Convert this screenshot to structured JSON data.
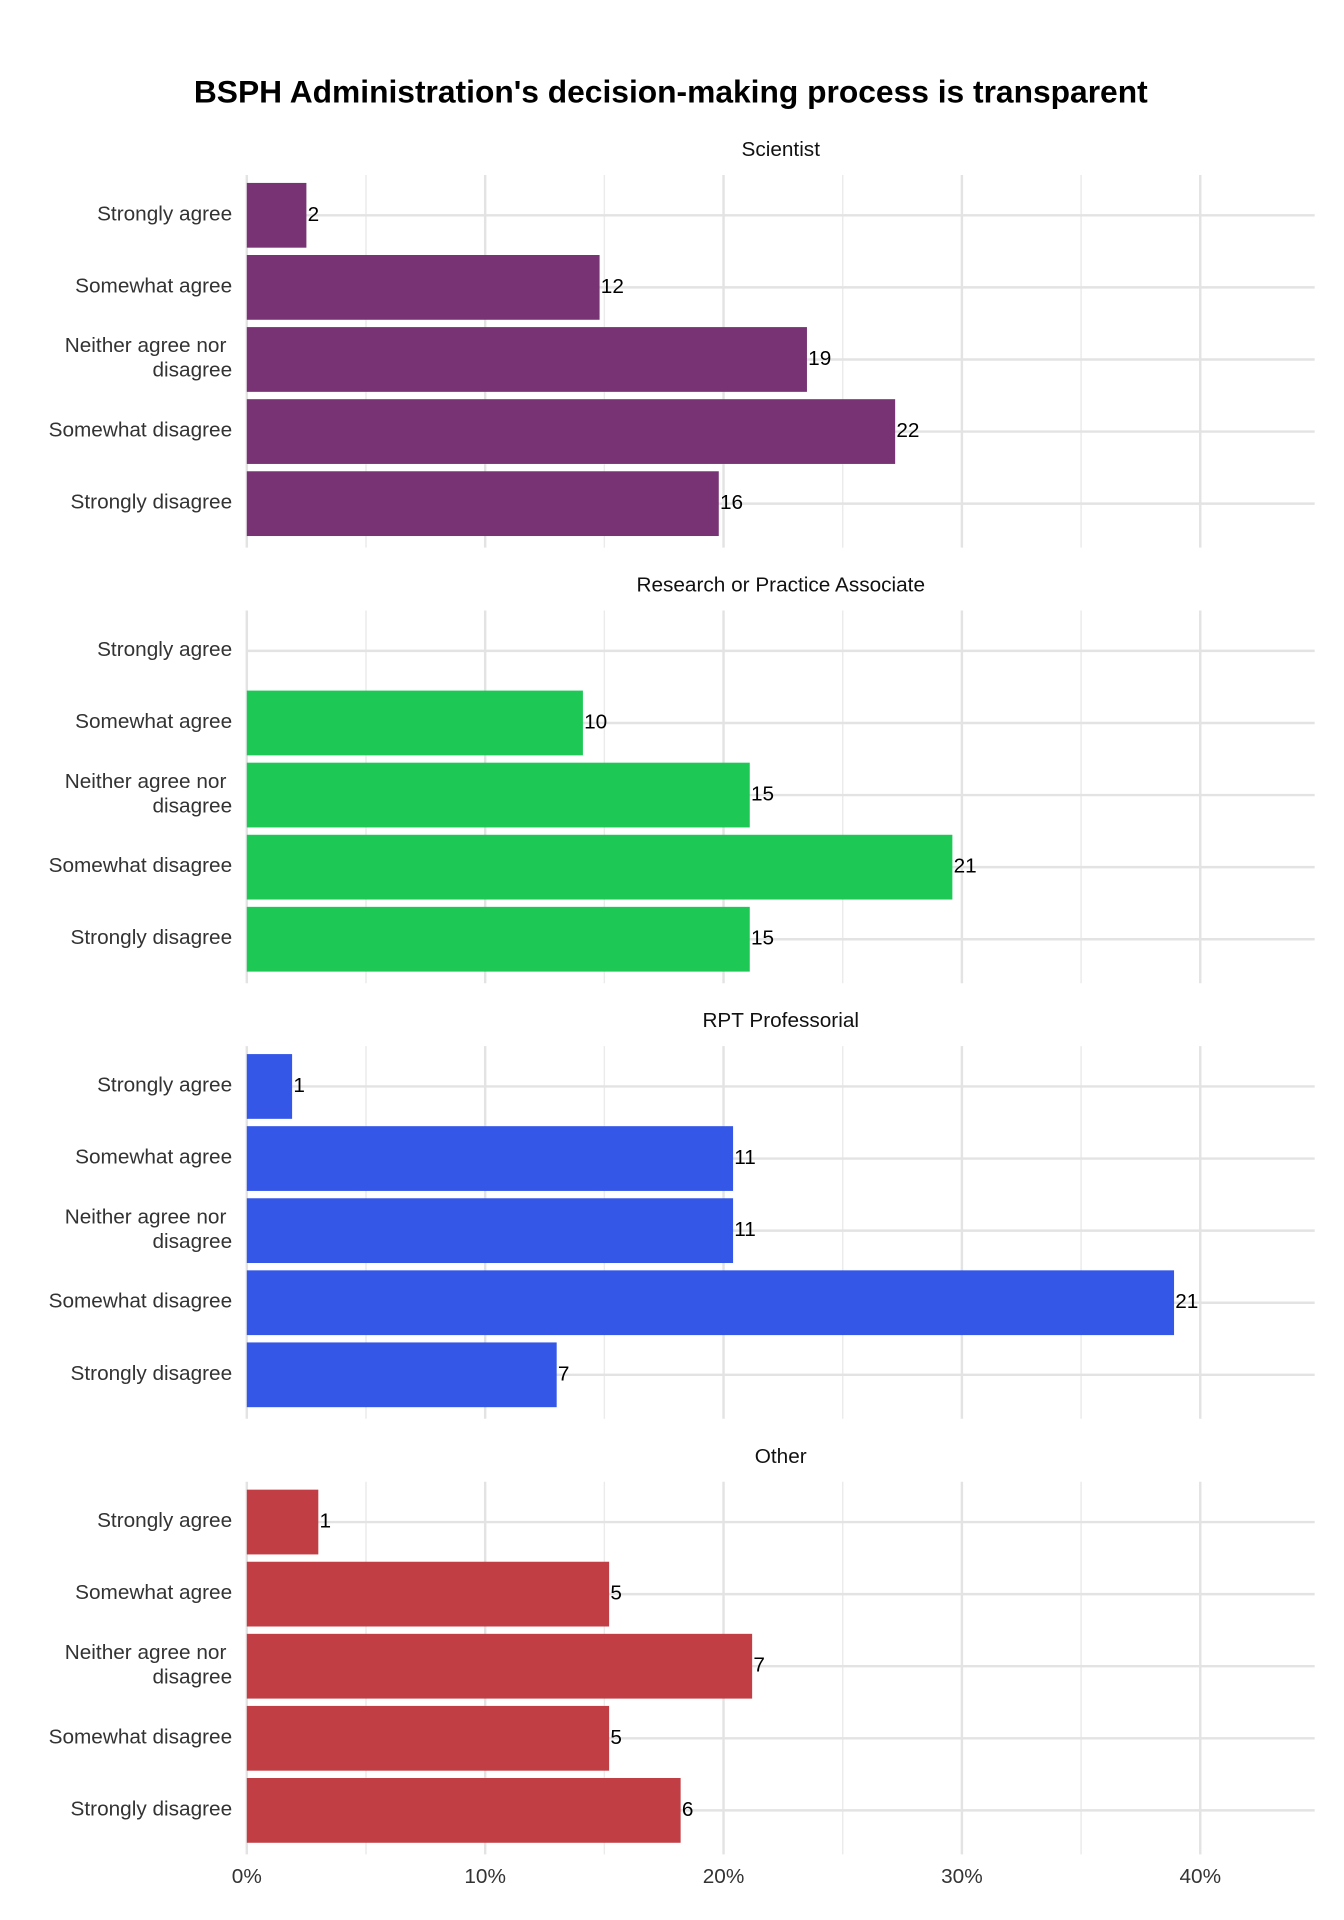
{
  "title": "BSPH Administration's decision-making process is transparent",
  "chart_data": [
    {
      "type": "barh",
      "title": "Scientist",
      "color": "#773374",
      "categories": [
        "Strongly agree",
        "Somewhat agree",
        "Neither agree nor disagree",
        "Somewhat disagree",
        "Strongly disagree"
      ],
      "values": [
        2.5,
        14.8,
        23.5,
        27.2,
        19.8
      ],
      "counts": [
        2,
        12,
        19,
        22,
        16
      ],
      "xlim": [
        0,
        44.8
      ],
      "xticks": [
        {
          "value": 0,
          "label": "0%"
        },
        {
          "value": 10,
          "label": "10%"
        },
        {
          "value": 20,
          "label": "20%"
        },
        {
          "value": 30,
          "label": "30%"
        },
        {
          "value": 40,
          "label": "40%"
        }
      ],
      "x_minor_ticks": [
        5,
        15,
        25,
        35
      ],
      "grid": true,
      "show_xtick_labels": false
    },
    {
      "type": "barh",
      "title": "Research or Practice Associate",
      "color": "#1dc855",
      "categories": [
        "Strongly agree",
        "Somewhat agree",
        "Neither agree nor disagree",
        "Somewhat disagree",
        "Strongly disagree"
      ],
      "values": [
        null,
        14.1,
        21.1,
        29.6,
        21.1
      ],
      "counts": [
        null,
        10,
        15,
        21,
        15
      ],
      "xlim": [
        0,
        44.8
      ],
      "xticks": [
        {
          "value": 0,
          "label": "0%"
        },
        {
          "value": 10,
          "label": "10%"
        },
        {
          "value": 20,
          "label": "20%"
        },
        {
          "value": 30,
          "label": "30%"
        },
        {
          "value": 40,
          "label": "40%"
        }
      ],
      "x_minor_ticks": [
        5,
        15,
        25,
        35
      ],
      "grid": true,
      "show_xtick_labels": false
    },
    {
      "type": "barh",
      "title": "RPT Professorial",
      "color": "#3457e8",
      "categories": [
        "Strongly agree",
        "Somewhat agree",
        "Neither agree nor disagree",
        "Somewhat disagree",
        "Strongly disagree"
      ],
      "values": [
        1.9,
        20.4,
        20.4,
        38.9,
        13.0
      ],
      "counts": [
        1,
        11,
        11,
        21,
        7
      ],
      "xlim": [
        0,
        44.8
      ],
      "xticks": [
        {
          "value": 0,
          "label": "0%"
        },
        {
          "value": 10,
          "label": "10%"
        },
        {
          "value": 20,
          "label": "20%"
        },
        {
          "value": 30,
          "label": "30%"
        },
        {
          "value": 40,
          "label": "40%"
        }
      ],
      "x_minor_ticks": [
        5,
        15,
        25,
        35
      ],
      "grid": true,
      "show_xtick_labels": false
    },
    {
      "type": "barh",
      "title": "Other",
      "color": "#c03e44",
      "categories": [
        "Strongly agree",
        "Somewhat agree",
        "Neither agree nor disagree",
        "Somewhat disagree",
        "Strongly disagree"
      ],
      "values": [
        3.0,
        15.2,
        21.2,
        15.2,
        18.2
      ],
      "counts": [
        1,
        5,
        7,
        5,
        6
      ],
      "xlim": [
        0,
        44.8
      ],
      "xticks": [
        {
          "value": 0,
          "label": "0%"
        },
        {
          "value": 10,
          "label": "10%"
        },
        {
          "value": 20,
          "label": "20%"
        },
        {
          "value": 30,
          "label": "30%"
        },
        {
          "value": 40,
          "label": "40%"
        }
      ],
      "x_minor_ticks": [
        5,
        15,
        25,
        35
      ],
      "grid": true,
      "show_xtick_labels": true
    }
  ]
}
